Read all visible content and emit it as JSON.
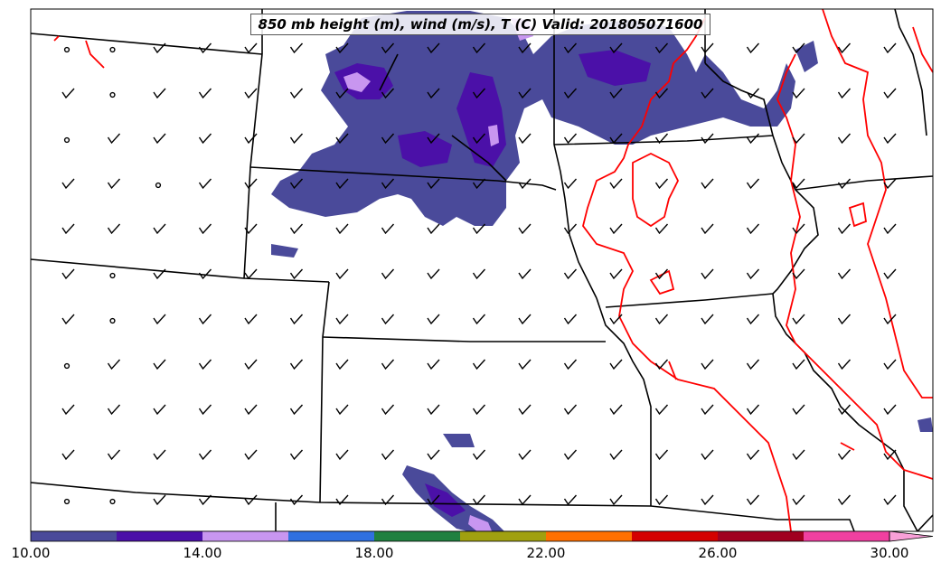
{
  "title": "850 mb height (m), wind (m/s), T (C) Valid: 201805071600",
  "colorbar": {
    "ticks": [
      "10.00",
      "14.00",
      "18.00",
      "22.00",
      "26.00",
      "30.00"
    ],
    "min": 10,
    "max": 30,
    "extend": "max",
    "colors": [
      "#4a4a9a",
      "#4b10a8",
      "#c896f0",
      "#3070e0",
      "#208040",
      "#a0a010",
      "#ff7000",
      "#d40000",
      "#a00020",
      "#f040a0"
    ],
    "extend_color": "#f8a0d8"
  },
  "colors": {
    "precip_light": "#4a4a9a",
    "precip_mid": "#4b10a8",
    "precip_high": "#c896f0",
    "isotherm": "#ff0000",
    "border": "#000000"
  }
}
